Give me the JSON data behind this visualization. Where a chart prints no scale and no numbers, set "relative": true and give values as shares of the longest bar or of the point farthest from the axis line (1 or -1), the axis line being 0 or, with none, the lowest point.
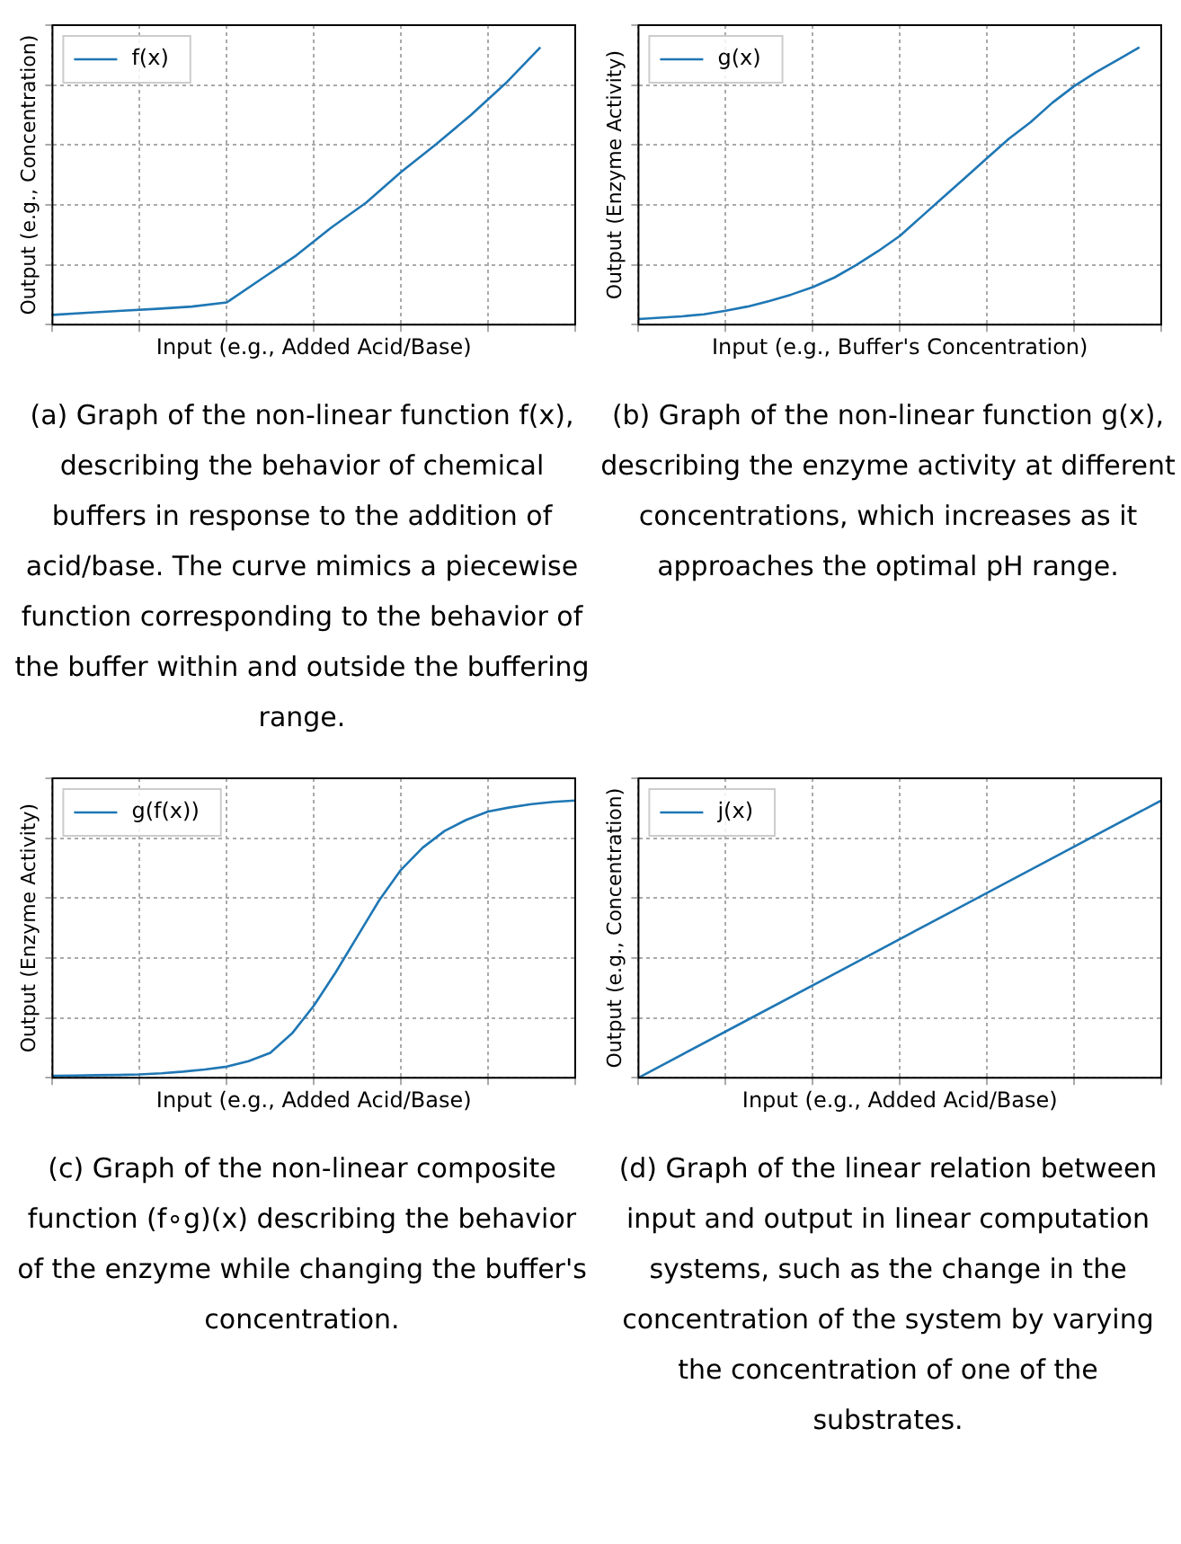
{
  "chart_data": [
    {
      "type": "line",
      "relative": true,
      "xlabel": "Input (e.g., Added Acid/Base)",
      "ylabel": "Output (e.g., Concentration)",
      "tick_labels": false,
      "grid": true,
      "legend": "top left",
      "categories": [
        null,
        null,
        null,
        null,
        null,
        null,
        null,
        null,
        null,
        null,
        null,
        null,
        null,
        null,
        null,
        null
      ],
      "series": [
        {
          "name": "f(x)",
          "color": "#1f77b4",
          "values": [
            0.035,
            0.043,
            0.05,
            0.057,
            0.065,
            0.08,
            0.165,
            0.25,
            0.35,
            0.44,
            0.55,
            0.65,
            0.755,
            0.87,
            1.0,
            null
          ]
        }
      ],
      "annotations": [
        "(a) Graph of the non-linear function f(x), describing the behavior of chemical buffers in response to the addition of acid/base. The curve mimics a piecewise function corresponding to the behavior of the buffer within and outside the buffering range."
      ]
    },
    {
      "type": "line",
      "relative": true,
      "xlabel": "Input (e.g., Buffer's Concentration)",
      "ylabel": "Output (Enzyme Activity)",
      "tick_labels": false,
      "grid": true,
      "legend": "top left",
      "categories": [
        null,
        null,
        null,
        null,
        null,
        null,
        null,
        null,
        null,
        null,
        null,
        null,
        null,
        null,
        null,
        null,
        null,
        null,
        null,
        null,
        null,
        null,
        null,
        null,
        null
      ],
      "series": [
        {
          "name": "g(x)",
          "color": "#1f77b4",
          "values": [
            0.02,
            0.025,
            0.03,
            0.037,
            0.05,
            0.065,
            0.085,
            0.108,
            0.135,
            0.17,
            0.215,
            0.265,
            0.32,
            0.39,
            0.46,
            0.53,
            0.6,
            0.67,
            0.73,
            0.8,
            0.86,
            0.91,
            0.955,
            1.0,
            null
          ]
        }
      ],
      "annotations": [
        "(b) Graph of the non-linear function g(x), describing the enzyme activity at different concentrations, which increases as it approaches the optimal pH range."
      ]
    },
    {
      "type": "line",
      "relative": true,
      "xlabel": "Input (e.g., Added Acid/Base)",
      "ylabel": "Output (Enzyme Activity)",
      "tick_labels": false,
      "grid": true,
      "legend": "top left",
      "categories": [
        null,
        null,
        null,
        null,
        null,
        null,
        null,
        null,
        null,
        null,
        null,
        null,
        null,
        null,
        null,
        null,
        null,
        null,
        null,
        null,
        null,
        null,
        null,
        null,
        null
      ],
      "series": [
        {
          "name": "g(f(x))",
          "color": "#1f77b4",
          "values": [
            0.007,
            0.008,
            0.009,
            0.01,
            0.012,
            0.016,
            0.022,
            0.03,
            0.04,
            0.06,
            0.09,
            0.16,
            0.26,
            0.38,
            0.51,
            0.64,
            0.75,
            0.83,
            0.89,
            0.93,
            0.96,
            0.975,
            0.987,
            0.995,
            1.0
          ]
        }
      ],
      "annotations": [
        "(c) Graph of the non-linear composite function (f∘g)(x) describing the behavior of the enzyme while changing the buffer's concentration."
      ]
    },
    {
      "type": "line",
      "relative": true,
      "xlabel": "Input (e.g., Added Acid/Base)",
      "ylabel": "Output (e.g., Concentration)",
      "tick_labels": false,
      "grid": true,
      "legend": "top left",
      "categories": [
        null,
        null,
        null,
        null,
        null,
        null
      ],
      "series": [
        {
          "name": "j(x)",
          "color": "#1f77b4",
          "values": [
            0,
            0.2,
            0.4,
            0.6,
            0.8,
            1.0
          ]
        }
      ],
      "annotations": [
        "(d) Graph of the linear relation between input and output in linear computation systems, such as the change in the concentration of the system by varying the concentration of one of the substrates."
      ]
    }
  ]
}
